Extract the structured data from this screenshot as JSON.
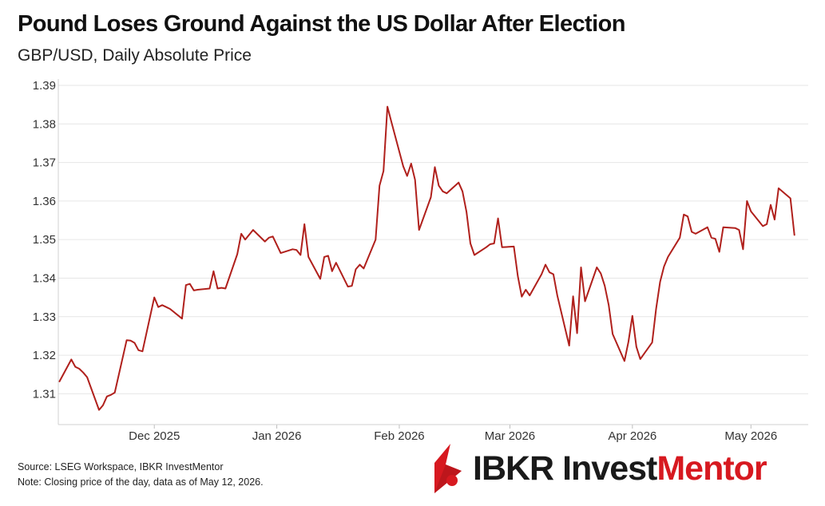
{
  "header": {
    "title": "Pound Loses Ground Against the US Dollar After Election",
    "subtitle": "GBP/USD, Daily Absolute Price"
  },
  "footer": {
    "source": "Source: LSEG Workspace, IBKR InvestMentor",
    "note": "Note: Closing price of the day, data as of May 12, 2026."
  },
  "logo": {
    "ibkr": "IBKR",
    "invest": "Invest",
    "mentor": "Mentor",
    "icon": "ibkr-flame-icon",
    "colors": {
      "red": "#d71920",
      "dark": "#1a1a1a"
    }
  },
  "chart_data": {
    "type": "line",
    "series": [
      {
        "color": "#b0201c",
        "x": [
          "2025-11-07",
          "2025-11-10",
          "2025-11-11",
          "2025-11-12",
          "2025-11-13",
          "2025-11-14",
          "2025-11-17",
          "2025-11-18",
          "2025-11-19",
          "2025-11-20",
          "2025-11-21",
          "2025-11-24",
          "2025-11-25",
          "2025-11-26",
          "2025-11-27",
          "2025-11-28",
          "2025-12-01",
          "2025-12-02",
          "2025-12-03",
          "2025-12-04",
          "2025-12-05",
          "2025-12-08",
          "2025-12-09",
          "2025-12-10",
          "2025-12-11",
          "2025-12-12",
          "2025-12-15",
          "2025-12-16",
          "2025-12-17",
          "2025-12-18",
          "2025-12-19",
          "2025-12-22",
          "2025-12-23",
          "2025-12-24",
          "2025-12-26",
          "2025-12-29",
          "2025-12-30",
          "2025-12-31",
          "2026-01-02",
          "2026-01-05",
          "2026-01-06",
          "2026-01-07",
          "2026-01-08",
          "2026-01-09",
          "2026-01-12",
          "2026-01-13",
          "2026-01-14",
          "2026-01-15",
          "2026-01-16",
          "2026-01-19",
          "2026-01-20",
          "2026-01-21",
          "2026-01-22",
          "2026-01-23",
          "2026-01-26",
          "2026-01-27",
          "2026-01-28",
          "2026-01-29",
          "2026-01-30",
          "2026-02-02",
          "2026-02-03",
          "2026-02-04",
          "2026-02-05",
          "2026-02-06",
          "2026-02-09",
          "2026-02-10",
          "2026-02-11",
          "2026-02-12",
          "2026-02-13",
          "2026-02-16",
          "2026-02-17",
          "2026-02-18",
          "2026-02-19",
          "2026-02-20",
          "2026-02-23",
          "2026-02-24",
          "2026-02-25",
          "2026-02-26",
          "2026-02-27",
          "2026-03-02",
          "2026-03-03",
          "2026-03-04",
          "2026-03-05",
          "2026-03-06",
          "2026-03-09",
          "2026-03-10",
          "2026-03-11",
          "2026-03-12",
          "2026-03-13",
          "2026-03-16",
          "2026-03-17",
          "2026-03-18",
          "2026-03-19",
          "2026-03-20",
          "2026-03-23",
          "2026-03-24",
          "2026-03-25",
          "2026-03-26",
          "2026-03-27",
          "2026-03-30",
          "2026-03-31",
          "2026-04-01",
          "2026-04-02",
          "2026-04-03",
          "2026-04-06",
          "2026-04-07",
          "2026-04-08",
          "2026-04-09",
          "2026-04-10",
          "2026-04-13",
          "2026-04-14",
          "2026-04-15",
          "2026-04-16",
          "2026-04-17",
          "2026-04-20",
          "2026-04-21",
          "2026-04-22",
          "2026-04-23",
          "2026-04-24",
          "2026-04-27",
          "2026-04-28",
          "2026-04-29",
          "2026-04-30",
          "2026-05-01",
          "2026-05-04",
          "2026-05-05",
          "2026-05-06",
          "2026-05-07",
          "2026-05-08",
          "2026-05-11",
          "2026-05-12"
        ],
        "y": [
          1.3132,
          1.3189,
          1.317,
          1.3165,
          1.3155,
          1.3143,
          1.3058,
          1.307,
          1.3093,
          1.3097,
          1.3103,
          1.3239,
          1.3238,
          1.3232,
          1.3213,
          1.321,
          1.335,
          1.3325,
          1.333,
          1.3325,
          1.332,
          1.3295,
          1.3382,
          1.3385,
          1.3368,
          1.337,
          1.3373,
          1.3418,
          1.3373,
          1.3375,
          1.3373,
          1.3462,
          1.3515,
          1.35,
          1.3525,
          1.3495,
          1.3505,
          1.3508,
          1.3465,
          1.3475,
          1.3473,
          1.346,
          1.354,
          1.3455,
          1.3398,
          1.3455,
          1.3458,
          1.3418,
          1.344,
          1.3378,
          1.338,
          1.3423,
          1.3435,
          1.3425,
          1.35,
          1.364,
          1.3678,
          1.3845,
          1.3805,
          1.369,
          1.3665,
          1.3697,
          1.3655,
          1.3525,
          1.361,
          1.3688,
          1.364,
          1.3625,
          1.362,
          1.3648,
          1.3625,
          1.3572,
          1.349,
          1.346,
          1.348,
          1.3488,
          1.349,
          1.3555,
          1.348,
          1.3482,
          1.3405,
          1.3352,
          1.337,
          1.3355,
          1.341,
          1.3435,
          1.3415,
          1.341,
          1.3355,
          1.3225,
          1.3353,
          1.3257,
          1.3428,
          1.334,
          1.3428,
          1.3412,
          1.338,
          1.333,
          1.3255,
          1.3185,
          1.3235,
          1.3302,
          1.3222,
          1.319,
          1.3233,
          1.332,
          1.339,
          1.343,
          1.3455,
          1.3505,
          1.3565,
          1.356,
          1.352,
          1.3515,
          1.3532,
          1.3505,
          1.3502,
          1.3468,
          1.3532,
          1.353,
          1.3525,
          1.3475,
          1.36,
          1.3573,
          1.3535,
          1.354,
          1.359,
          1.3552,
          1.3633,
          1.3607,
          1.3512
        ]
      }
    ],
    "x_ticks": [
      "Dec 2025",
      "Jan 2026",
      "Feb 2026",
      "Mar 2026",
      "Apr 2026",
      "May 2026"
    ],
    "y_ticks": [
      "1.31",
      "1.32",
      "1.33",
      "1.34",
      "1.35",
      "1.36",
      "1.37",
      "1.38",
      "1.39"
    ],
    "ylim": [
      1.302,
      1.39
    ],
    "xlim": [
      "2025-11-07",
      "2026-05-12"
    ],
    "grid": "horizontal"
  }
}
